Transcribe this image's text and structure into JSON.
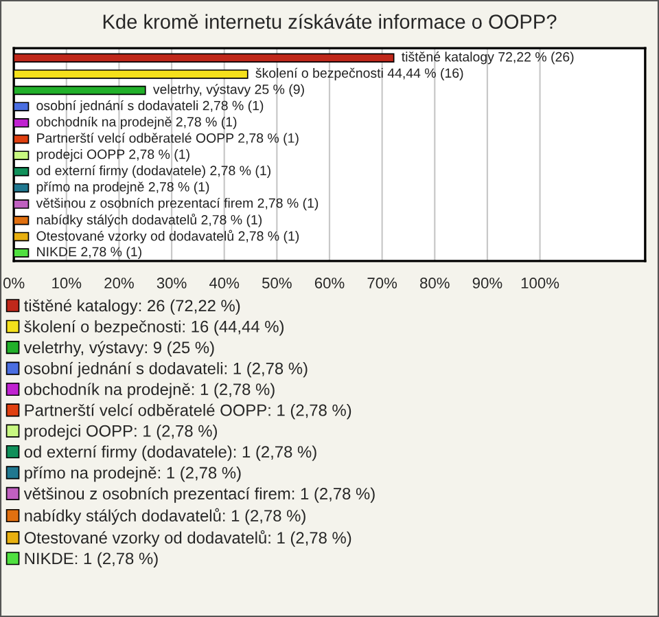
{
  "chart_data": {
    "type": "bar",
    "orientation": "horizontal",
    "title": "Kde kromě internetu získáváte informace o OOPP?",
    "categories": [
      null,
      null,
      null,
      null,
      null,
      null,
      null,
      null,
      null,
      null,
      null,
      null,
      null
    ],
    "series": [
      {
        "name": "tištěné katalogy: 26 (72,22 %)",
        "color": "#c0281b",
        "values": [
          72.22,
          null,
          null,
          null,
          null,
          null,
          null,
          null,
          null,
          null,
          null,
          null,
          null
        ],
        "value_labels": [
          "tištěné katalogy 72,22 % (26)",
          null,
          null,
          null,
          null,
          null,
          null,
          null,
          null,
          null,
          null,
          null,
          null
        ]
      },
      {
        "name": "školení o bezpečnosti: 16 (44,44 %)",
        "color": "#f4e01c",
        "values": [
          null,
          44.44,
          null,
          null,
          null,
          null,
          null,
          null,
          null,
          null,
          null,
          null,
          null
        ],
        "value_labels": [
          null,
          "školení o bezpečnosti 44,44 % (16)",
          null,
          null,
          null,
          null,
          null,
          null,
          null,
          null,
          null,
          null,
          null
        ]
      },
      {
        "name": "veletrhy, výstavy: 9 (25 %)",
        "color": "#22b02a",
        "values": [
          null,
          null,
          25,
          null,
          null,
          null,
          null,
          null,
          null,
          null,
          null,
          null,
          null
        ],
        "value_labels": [
          null,
          null,
          "veletrhy, výstavy 25 % (9)",
          null,
          null,
          null,
          null,
          null,
          null,
          null,
          null,
          null,
          null
        ]
      },
      {
        "name": "osobní jednání s dodavateli: 1 (2,78 %)",
        "color": "#4a6ee0",
        "values": [
          null,
          null,
          null,
          2.78,
          null,
          null,
          null,
          null,
          null,
          null,
          null,
          null,
          null
        ],
        "value_labels": [
          null,
          null,
          null,
          "osobní jednání s dodavateli 2,78 % (1)",
          null,
          null,
          null,
          null,
          null,
          null,
          null,
          null,
          null
        ]
      },
      {
        "name": "obchodník na prodejně: 1 (2,78 %)",
        "color": "#c022d0",
        "values": [
          null,
          null,
          null,
          null,
          2.78,
          null,
          null,
          null,
          null,
          null,
          null,
          null,
          null
        ],
        "value_labels": [
          null,
          null,
          null,
          null,
          "obchodník na prodejně 2,78 % (1)",
          null,
          null,
          null,
          null,
          null,
          null,
          null,
          null
        ]
      },
      {
        "name": "Partnerští velcí odběratelé OOPP: 1 (2,78 %)",
        "color": "#e04010",
        "values": [
          null,
          null,
          null,
          null,
          null,
          2.78,
          null,
          null,
          null,
          null,
          null,
          null,
          null
        ],
        "value_labels": [
          null,
          null,
          null,
          null,
          null,
          "Partnerští velcí odběratelé OOPP 2,78 % (1)",
          null,
          null,
          null,
          null,
          null,
          null,
          null
        ]
      },
      {
        "name": "prodejci OOPP: 1 (2,78 %)",
        "color": "#c8f880",
        "values": [
          null,
          null,
          null,
          null,
          null,
          null,
          2.78,
          null,
          null,
          null,
          null,
          null,
          null
        ],
        "value_labels": [
          null,
          null,
          null,
          null,
          null,
          null,
          "prodejci OOPP 2,78 % (1)",
          null,
          null,
          null,
          null,
          null,
          null
        ]
      },
      {
        "name": "od externí firmy (dodavatele): 1 (2,78 %)",
        "color": "#10905a",
        "values": [
          null,
          null,
          null,
          null,
          null,
          null,
          null,
          2.78,
          null,
          null,
          null,
          null,
          null
        ],
        "value_labels": [
          null,
          null,
          null,
          null,
          null,
          null,
          null,
          "od externí firmy (dodavatele) 2,78 % (1)",
          null,
          null,
          null,
          null,
          null
        ]
      },
      {
        "name": "přímo na prodejně: 1 (2,78 %)",
        "color": "#207890",
        "values": [
          null,
          null,
          null,
          null,
          null,
          null,
          null,
          null,
          2.78,
          null,
          null,
          null,
          null
        ],
        "value_labels": [
          null,
          null,
          null,
          null,
          null,
          null,
          null,
          null,
          "přímo na prodejně 2,78 % (1)",
          null,
          null,
          null,
          null
        ]
      },
      {
        "name": "většinou z osobních prezentací firem: 1 (2,78 %)",
        "color": "#c060c0",
        "values": [
          null,
          null,
          null,
          null,
          null,
          null,
          null,
          null,
          null,
          2.78,
          null,
          null,
          null
        ],
        "value_labels": [
          null,
          null,
          null,
          null,
          null,
          null,
          null,
          null,
          null,
          "většinou z osobních prezentací firem 2,78 % (1)",
          null,
          null,
          null
        ]
      },
      {
        "name": "nabídky stálých dodavatelů: 1 (2,78 %)",
        "color": "#e07010",
        "values": [
          null,
          null,
          null,
          null,
          null,
          null,
          null,
          null,
          null,
          null,
          2.78,
          null,
          null
        ],
        "value_labels": [
          null,
          null,
          null,
          null,
          null,
          null,
          null,
          null,
          null,
          null,
          "nabídky stálých dodavatelů 2,78 % (1)",
          null,
          null
        ]
      },
      {
        "name": "Otestované vzorky od dodavatelů: 1 (2,78 %)",
        "color": "#e8b010",
        "values": [
          null,
          null,
          null,
          null,
          null,
          null,
          null,
          null,
          null,
          null,
          null,
          2.78,
          null
        ],
        "value_labels": [
          null,
          null,
          null,
          null,
          null,
          null,
          null,
          null,
          null,
          null,
          null,
          "Otestované vzorky od dodavatelů 2,78 % (1)",
          null
        ]
      },
      {
        "name": "NIKDE: 1 (2,78 %)",
        "color": "#50e040",
        "values": [
          null,
          null,
          null,
          null,
          null,
          null,
          null,
          null,
          null,
          null,
          null,
          null,
          2.78
        ],
        "value_labels": [
          null,
          null,
          null,
          null,
          null,
          null,
          null,
          null,
          null,
          null,
          null,
          null,
          "NIKDE 2,78 % (1)"
        ]
      }
    ],
    "xlim": [
      0,
      120
    ],
    "xticks": [
      {
        "value": 0,
        "label": "0%"
      },
      {
        "value": 10,
        "label": "10%"
      },
      {
        "value": 20,
        "label": "20%"
      },
      {
        "value": 30,
        "label": "30%"
      },
      {
        "value": 40,
        "label": "40%"
      },
      {
        "value": 50,
        "label": "50%"
      },
      {
        "value": 60,
        "label": "60%"
      },
      {
        "value": 70,
        "label": "70%"
      },
      {
        "value": 80,
        "label": "80%"
      },
      {
        "value": 90,
        "label": "90%"
      },
      {
        "value": 100,
        "label": "100%"
      }
    ],
    "grid": "x",
    "tick_labels": "x",
    "legend": "bottom"
  }
}
